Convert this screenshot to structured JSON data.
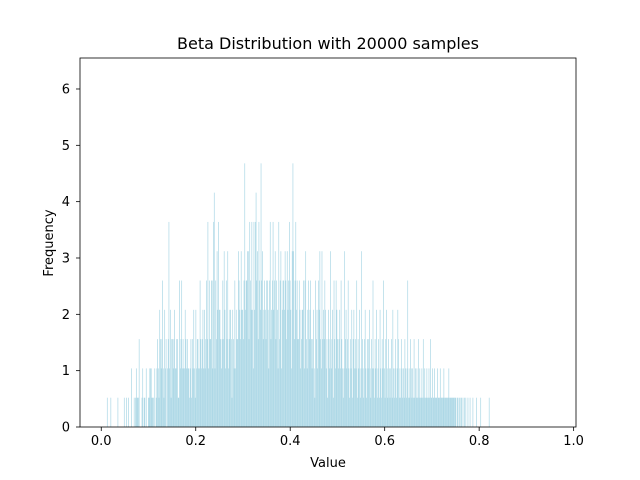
{
  "chart_data": {
    "type": "bar",
    "title": "Beta Distribution with 20000 samples",
    "xlabel": "Value",
    "ylabel": "Frequency",
    "xlim": [
      -0.045,
      1.005
    ],
    "ylim": [
      0,
      6.55
    ],
    "xticks": [
      "0.0",
      "0.2",
      "0.4",
      "0.6",
      "0.8",
      "1.0"
    ],
    "yticks": [
      "0",
      "1",
      "2",
      "3",
      "4",
      "5",
      "6"
    ],
    "grid": false,
    "bar_color": "#add8e6",
    "bins": {
      "start": 0.0,
      "width": 0.0015,
      "counts": [
        0,
        0,
        0,
        0,
        0,
        0,
        0,
        0,
        0.52,
        0,
        0,
        0,
        0,
        0.52,
        0,
        0,
        0,
        0,
        0,
        0,
        0,
        0,
        0,
        0.52,
        0,
        0,
        0,
        0,
        0,
        0,
        0,
        0,
        0.52,
        0,
        0,
        0.52,
        0,
        0,
        0.52,
        0,
        0,
        0,
        1.04,
        0,
        0,
        0,
        0.52,
        0,
        0.52,
        1.04,
        0.52,
        0.52,
        0.52,
        1.56,
        0,
        0,
        0,
        0.52,
        1.04,
        0,
        0.52,
        0.52,
        0,
        1.04,
        0,
        0,
        0.52,
        0.52,
        1.04,
        1.04,
        1.04,
        0.52,
        0.52,
        0.52,
        0,
        1.04,
        0,
        0.52,
        1.04,
        1.56,
        1.04,
        0.52,
        2.08,
        1.56,
        1.04,
        1.56,
        2.6,
        1.04,
        0.52,
        2.08,
        1.04,
        1.56,
        0,
        1.04,
        1.56,
        3.64,
        1.04,
        2.08,
        0.52,
        1.56,
        1.56,
        1.04,
        1.56,
        2.08,
        1.04,
        1.04,
        1.56,
        1.56,
        0.52,
        0.52,
        2.6,
        1.04,
        1.56,
        2.6,
        1.04,
        1.56,
        1.04,
        1.04,
        2.08,
        1.56,
        1.04,
        1.56,
        1.04,
        1.04,
        0.52,
        1.04,
        1.56,
        0.52,
        1.56,
        1.04,
        2.08,
        1.04,
        0.52,
        2.08,
        1.04,
        1.56,
        1.56,
        1.04,
        1.04,
        2.6,
        1.56,
        1.04,
        1.56,
        2.08,
        1.04,
        2.08,
        1.04,
        1.56,
        2.6,
        1.56,
        3.64,
        1.04,
        2.6,
        1.56,
        1.56,
        2.6,
        2.6,
        1.04,
        3.64,
        4.16,
        1.04,
        2.6,
        1.56,
        3.12,
        2.08,
        3.64,
        2.08,
        2.08,
        1.56,
        1.04,
        1.56,
        2.6,
        1.56,
        3.12,
        2.08,
        1.04,
        2.6,
        1.56,
        3.12,
        1.04,
        1.56,
        2.08,
        2.08,
        1.56,
        0.52,
        2.08,
        1.56,
        1.04,
        2.6,
        1.04,
        2.08,
        1.56,
        1.56,
        3.12,
        2.6,
        2.08,
        1.56,
        3.12,
        2.08,
        2.08,
        1.56,
        2.6,
        4.68,
        2.08,
        2.6,
        2.6,
        3.12,
        3.12,
        1.56,
        3.64,
        2.6,
        2.08,
        3.64,
        2.08,
        1.04,
        3.64,
        2.08,
        3.64,
        4.16,
        2.6,
        3.12,
        1.56,
        3.64,
        2.6,
        2.08,
        4.68,
        2.6,
        3.12,
        1.56,
        2.08,
        2.6,
        2.08,
        1.56,
        2.6,
        2.6,
        2.08,
        1.04,
        2.6,
        3.64,
        1.56,
        2.08,
        2.6,
        3.64,
        2.08,
        2.6,
        3.12,
        1.56,
        2.6,
        2.08,
        1.04,
        3.64,
        1.56,
        2.6,
        3.12,
        1.04,
        2.08,
        2.6,
        2.6,
        2.08,
        3.12,
        2.6,
        1.56,
        3.12,
        2.08,
        2.6,
        3.64,
        2.6,
        2.08,
        1.04,
        3.12,
        4.68,
        3.12,
        1.56,
        2.6,
        3.64,
        2.08,
        2.6,
        1.56,
        1.56,
        2.6,
        2.08,
        1.04,
        1.56,
        2.08,
        2.08,
        2.6,
        1.04,
        2.6,
        3.12,
        1.56,
        1.04,
        2.08,
        2.6,
        1.56,
        2.08,
        2.6,
        1.56,
        1.04,
        1.56,
        2.08,
        1.04,
        0.52,
        2.6,
        1.56,
        2.08,
        1.04,
        2.6,
        2.08,
        3.12,
        1.56,
        1.04,
        3.12,
        1.56,
        2.08,
        1.56,
        2.6,
        2.08,
        1.04,
        1.56,
        0.52,
        2.08,
        1.56,
        1.04,
        3.12,
        1.04,
        1.56,
        2.08,
        0.52,
        2.6,
        1.56,
        1.04,
        2.6,
        2.08,
        1.56,
        1.04,
        1.56,
        2.08,
        1.04,
        2.6,
        1.56,
        1.04,
        0.52,
        1.04,
        3.12,
        1.56,
        2.08,
        1.04,
        1.56,
        2.6,
        1.04,
        0.52,
        1.56,
        1.04,
        2.08,
        0.52,
        1.56,
        2.08,
        1.04,
        1.56,
        1.04,
        2.6,
        0.52,
        1.56,
        1.04,
        2.08,
        0.52,
        1.04,
        3.12,
        1.56,
        1.04,
        0.52,
        1.56,
        2.08,
        1.04,
        0.52,
        1.56,
        1.04,
        1.56,
        2.08,
        1.04,
        0.52,
        1.56,
        1.04,
        2.6,
        1.04,
        0.52,
        1.56,
        1.04,
        2.08,
        0.52,
        1.04,
        1.56,
        0.52,
        2.08,
        1.04,
        0.52,
        1.56,
        1.04,
        2.6,
        1.04,
        0.52,
        1.56,
        2.08,
        1.04,
        0.52,
        1.56,
        1.04,
        0.52,
        1.04,
        1.56,
        0.52,
        2.08,
        1.04,
        0.52,
        1.04,
        1.56,
        0.52,
        1.04,
        2.08,
        1.56,
        0.52,
        1.04,
        0.52,
        1.56,
        1.04,
        0.52,
        1.04,
        0.52,
        1.56,
        1.04,
        0.52,
        1.04,
        2.6,
        0.52,
        1.04,
        0.52,
        1.56,
        1.04,
        0.52,
        1.04,
        0.52,
        1.56,
        0.52,
        1.04,
        0.52,
        1.04,
        0.52,
        1.56,
        0.52,
        1.04,
        0.52,
        0.52,
        1.04,
        0.52,
        1.56,
        0.52,
        1.04,
        0.52,
        0.52,
        1.04,
        0.52,
        0.52,
        1.04,
        0.52,
        1.56,
        0.52,
        0.52,
        1.04,
        0.52,
        0.52,
        1.04,
        0.52,
        0.52,
        0.52,
        1.04,
        0.52,
        0.52,
        0.52,
        1.04,
        0.52,
        0.52,
        0.52,
        0.52,
        1.04,
        0.52,
        0.52,
        0.52,
        0.52,
        0.52,
        0.52,
        1.04,
        0.52,
        0.52,
        0.52,
        0.52,
        0.52,
        0.52,
        0.52,
        0.52,
        0.52,
        0.52,
        0,
        0.52,
        0.52,
        0,
        0.52,
        0,
        0.52,
        0.52,
        0,
        0.52,
        0,
        0.52,
        0,
        0.52,
        0,
        0,
        0.52,
        0,
        0,
        0.52,
        0,
        0,
        0,
        0.52,
        0,
        0,
        0,
        0,
        0.52,
        0,
        0,
        0,
        0,
        0,
        0.52,
        0,
        0,
        0,
        0,
        0,
        0,
        0,
        0,
        0,
        0,
        0,
        0.52
      ]
    }
  }
}
